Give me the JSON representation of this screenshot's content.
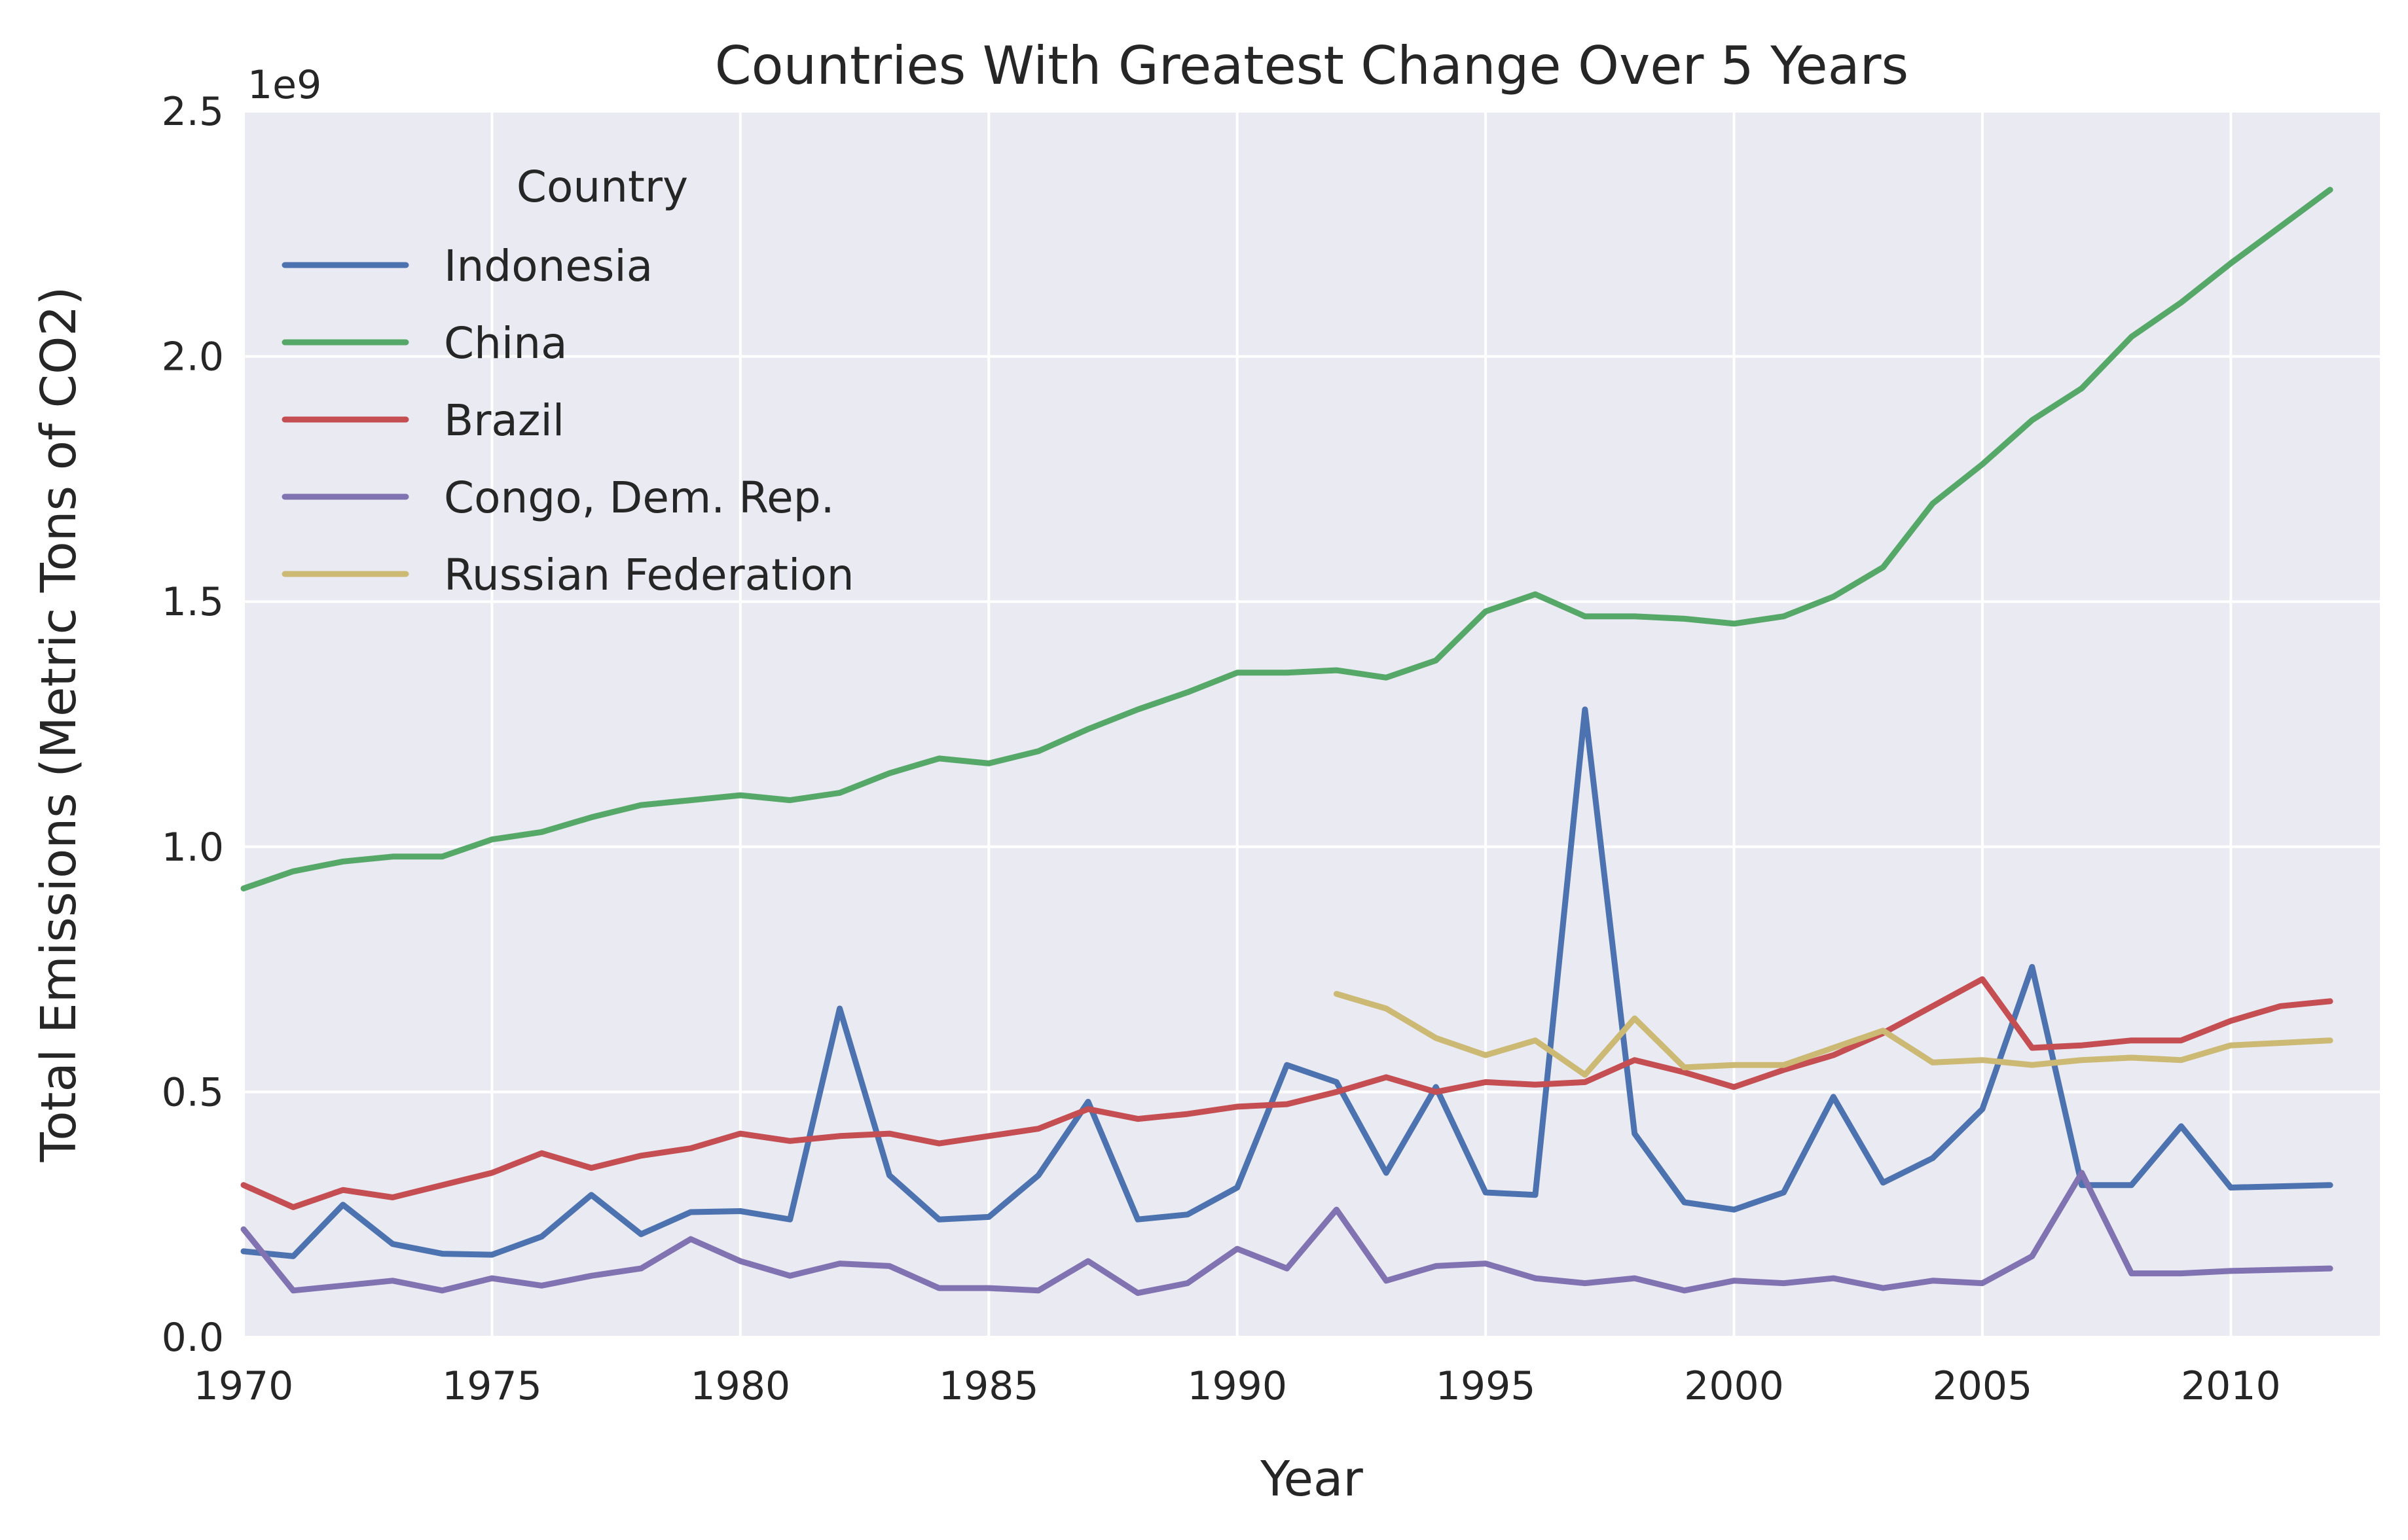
{
  "chart_data": {
    "type": "line",
    "title": "Countries With Greatest Change Over 5 Years",
    "xlabel": "Year",
    "ylabel": "Total Emissions (Metric Tons of CO2)",
    "y_offset_label": "1e9",
    "xlim": [
      1970,
      2013
    ],
    "ylim": [
      0,
      2.5
    ],
    "y_unit_multiplier": 1000000000,
    "x_ticks": [
      1970,
      1975,
      1980,
      1985,
      1990,
      1995,
      2000,
      2005,
      2010
    ],
    "x_tick_labels": [
      "1970",
      "1975",
      "1980",
      "1985",
      "1990",
      "1995",
      "2000",
      "2005",
      "2010"
    ],
    "y_ticks": [
      0,
      0.5,
      1.0,
      1.5,
      2.0,
      2.5
    ],
    "y_tick_labels": [
      "0.0",
      "0.5",
      "1.0",
      "1.5",
      "2.0",
      "2.5"
    ],
    "grid": true,
    "legend": {
      "title": "Country",
      "position": "upper-left"
    },
    "series": [
      {
        "name": "Indonesia",
        "color": "#4c72b0",
        "x": [
          1970,
          1971,
          1972,
          1973,
          1974,
          1975,
          1976,
          1977,
          1978,
          1979,
          1980,
          1981,
          1982,
          1983,
          1984,
          1985,
          1986,
          1987,
          1988,
          1989,
          1990,
          1991,
          1992,
          1993,
          1994,
          1995,
          1996,
          1997,
          1998,
          1999,
          2000,
          2001,
          2002,
          2003,
          2004,
          2005,
          2006,
          2007,
          2008,
          2009,
          2010,
          2012
        ],
        "y": [
          0.175,
          0.165,
          0.27,
          0.19,
          0.17,
          0.168,
          0.205,
          0.29,
          0.21,
          0.255,
          0.257,
          0.24,
          0.67,
          0.33,
          0.24,
          0.245,
          0.33,
          0.48,
          0.24,
          0.25,
          0.305,
          0.555,
          0.52,
          0.335,
          0.51,
          0.295,
          0.29,
          1.28,
          0.415,
          0.275,
          0.26,
          0.295,
          0.49,
          0.315,
          0.365,
          0.465,
          0.755,
          0.31,
          0.31,
          0.43,
          0.305,
          0.31
        ]
      },
      {
        "name": "China",
        "color": "#55a868",
        "x": [
          1970,
          1971,
          1972,
          1973,
          1974,
          1975,
          1976,
          1977,
          1978,
          1979,
          1980,
          1981,
          1982,
          1983,
          1984,
          1985,
          1986,
          1987,
          1988,
          1989,
          1990,
          1991,
          1992,
          1993,
          1994,
          1995,
          1996,
          1997,
          1998,
          1999,
          2000,
          2001,
          2002,
          2003,
          2004,
          2005,
          2006,
          2007,
          2008,
          2009,
          2010,
          2011,
          2012
        ],
        "y": [
          0.915,
          0.95,
          0.97,
          0.98,
          0.98,
          1.015,
          1.03,
          1.06,
          1.085,
          1.095,
          1.105,
          1.095,
          1.11,
          1.15,
          1.18,
          1.17,
          1.195,
          1.24,
          1.28,
          1.315,
          1.355,
          1.355,
          1.36,
          1.345,
          1.38,
          1.48,
          1.515,
          1.47,
          1.47,
          1.465,
          1.455,
          1.47,
          1.51,
          1.57,
          1.7,
          1.78,
          1.87,
          1.935,
          2.04,
          2.11,
          2.19,
          2.265,
          2.34
        ]
      },
      {
        "name": "Brazil",
        "color": "#c44e52",
        "x": [
          1970,
          1971,
          1972,
          1973,
          1974,
          1975,
          1976,
          1977,
          1978,
          1979,
          1980,
          1981,
          1982,
          1983,
          1984,
          1985,
          1986,
          1987,
          1988,
          1989,
          1990,
          1991,
          1992,
          1993,
          1994,
          1995,
          1996,
          1997,
          1998,
          1999,
          2000,
          2001,
          2002,
          2003,
          2004,
          2005,
          2006,
          2007,
          2008,
          2009,
          2010,
          2011,
          2012
        ],
        "y": [
          0.31,
          0.265,
          0.3,
          0.285,
          0.31,
          0.335,
          0.375,
          0.345,
          0.37,
          0.385,
          0.415,
          0.4,
          0.41,
          0.415,
          0.395,
          0.41,
          0.425,
          0.465,
          0.445,
          0.455,
          0.47,
          0.475,
          0.5,
          0.53,
          0.5,
          0.52,
          0.515,
          0.52,
          0.565,
          0.54,
          0.51,
          0.545,
          0.575,
          0.62,
          0.675,
          0.73,
          0.59,
          0.595,
          0.605,
          0.605,
          0.645,
          0.675,
          0.685
        ]
      },
      {
        "name": "Congo, Dem. Rep.",
        "color": "#8172b2",
        "x": [
          1970,
          1971,
          1972,
          1973,
          1974,
          1975,
          1976,
          1977,
          1978,
          1979,
          1980,
          1981,
          1982,
          1983,
          1984,
          1985,
          1986,
          1987,
          1988,
          1989,
          1990,
          1991,
          1992,
          1993,
          1994,
          1995,
          1996,
          1997,
          1998,
          1999,
          2000,
          2001,
          2002,
          2003,
          2004,
          2005,
          2006,
          2007,
          2008,
          2009,
          2010,
          2012
        ],
        "y": [
          0.22,
          0.095,
          0.105,
          0.115,
          0.095,
          0.12,
          0.105,
          0.125,
          0.14,
          0.2,
          0.155,
          0.125,
          0.15,
          0.145,
          0.1,
          0.1,
          0.095,
          0.155,
          0.09,
          0.11,
          0.18,
          0.14,
          0.26,
          0.115,
          0.145,
          0.15,
          0.12,
          0.11,
          0.12,
          0.095,
          0.115,
          0.11,
          0.12,
          0.1,
          0.115,
          0.11,
          0.165,
          0.335,
          0.13,
          0.13,
          0.135,
          0.14
        ]
      },
      {
        "name": "Russian Federation",
        "color": "#ccb974",
        "x": [
          1992,
          1993,
          1994,
          1995,
          1996,
          1997,
          1998,
          1999,
          2000,
          2001,
          2002,
          2003,
          2004,
          2005,
          2006,
          2007,
          2008,
          2009,
          2010,
          2011,
          2012
        ],
        "y": [
          0.7,
          0.67,
          0.61,
          0.575,
          0.605,
          0.535,
          0.65,
          0.55,
          0.555,
          0.555,
          0.59,
          0.625,
          0.56,
          0.565,
          0.555,
          0.565,
          0.57,
          0.565,
          0.595,
          0.6,
          0.605
        ]
      }
    ]
  }
}
